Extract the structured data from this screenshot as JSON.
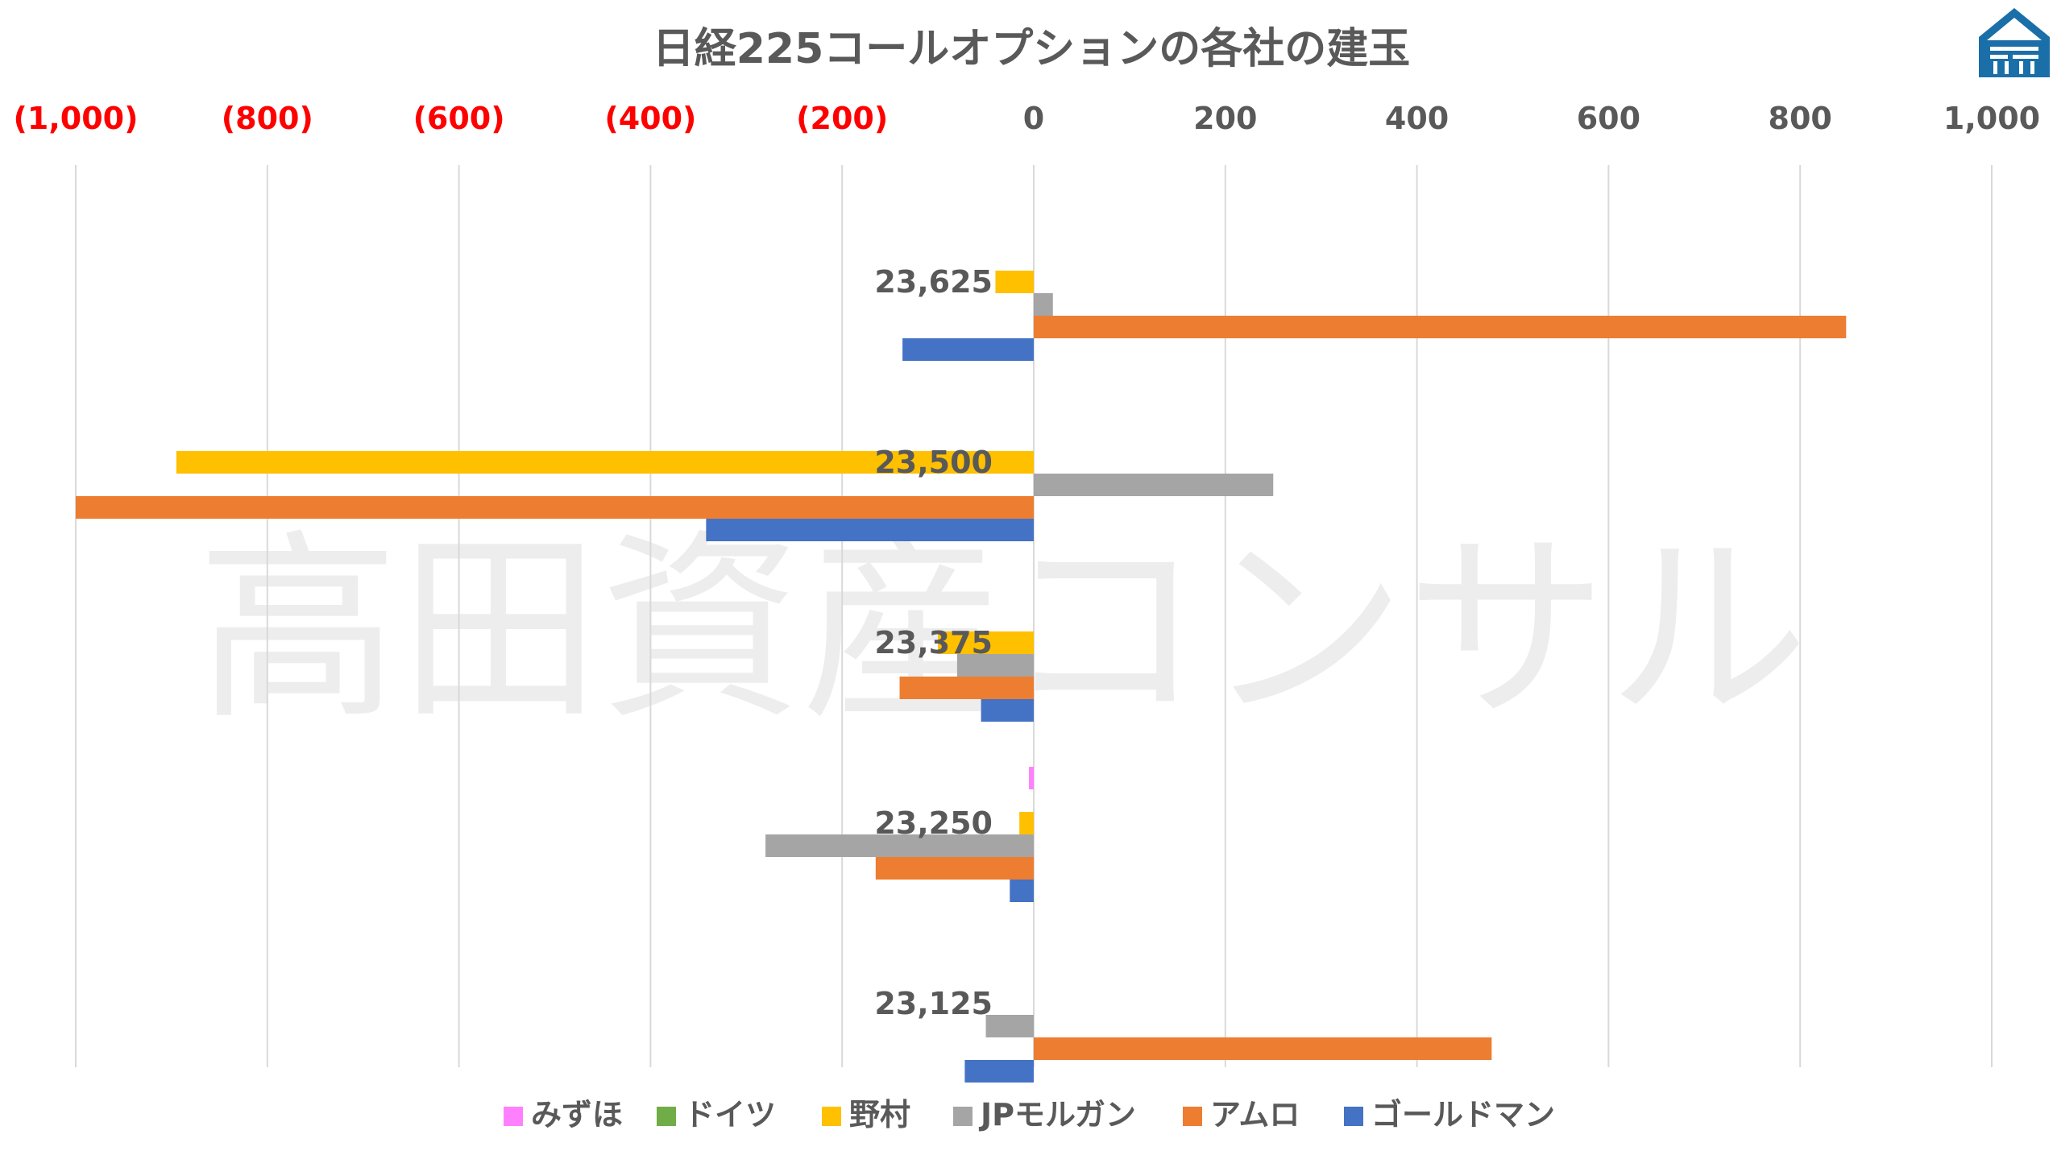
{
  "chart_data": {
    "type": "bar",
    "orientation": "horizontal",
    "title": "日経225コールオプションの各社の建玉",
    "xlim": [
      -1000,
      1000
    ],
    "x_ticks": [
      {
        "value": -1000,
        "label": "(1,000)"
      },
      {
        "value": -800,
        "label": "(800)"
      },
      {
        "value": -600,
        "label": "(600)"
      },
      {
        "value": -400,
        "label": "(400)"
      },
      {
        "value": -200,
        "label": "(200)"
      },
      {
        "value": 0,
        "label": "0"
      },
      {
        "value": 200,
        "label": "200"
      },
      {
        "value": 400,
        "label": "400"
      },
      {
        "value": 600,
        "label": "600"
      },
      {
        "value": 800,
        "label": "800"
      },
      {
        "value": 1000,
        "label": "1,000"
      }
    ],
    "negative_tick_color": "#ff0000",
    "positive_tick_color": "#595959",
    "grid": true,
    "legend_position": "bottom",
    "categories": [
      "23,625",
      "23,500",
      "23,375",
      "23,250",
      "23,125"
    ],
    "series": [
      {
        "name": "みずほ",
        "color": "#ff80ff",
        "values": [
          0,
          0,
          0,
          -5,
          0
        ]
      },
      {
        "name": "ドイツ",
        "color": "#70ad47",
        "values": [
          0,
          0,
          0,
          0,
          0
        ]
      },
      {
        "name": "野村",
        "color": "#ffc000",
        "values": [
          -40,
          -895,
          -100,
          -15,
          0
        ]
      },
      {
        "name": "JPモルガン",
        "color": "#a5a5a5",
        "values": [
          20,
          250,
          -80,
          -280,
          -50
        ]
      },
      {
        "name": "アムロ",
        "color": "#ed7d31",
        "values": [
          848,
          -1000,
          -140,
          -165,
          478
        ]
      },
      {
        "name": "ゴールドマン",
        "color": "#4472c4",
        "values": [
          -137,
          -342,
          -55,
          -25,
          -72
        ]
      }
    ]
  },
  "watermark": "高田資産コンサル",
  "logo": {
    "icon": "house-logo-icon",
    "color": "#1a6fa8"
  }
}
